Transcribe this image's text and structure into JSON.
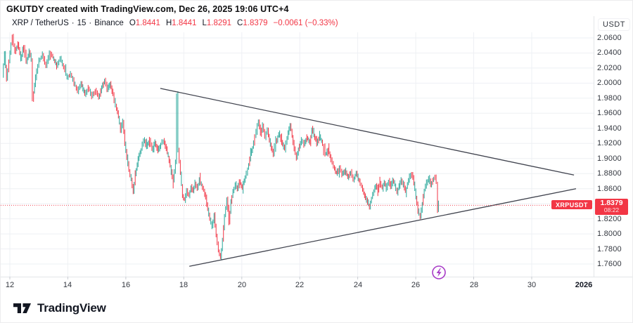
{
  "header": {
    "title": "GKUTDY created with TradingView.com, Dec 26, 2025 19:06 UTC+4"
  },
  "symbol_bar": {
    "symbol": "XRP / TetherUS",
    "sep": "·",
    "interval": "15",
    "exchange": "Binance",
    "o_label": "O",
    "o": "1.8441",
    "h_label": "H",
    "h": "1.8441",
    "l_label": "L",
    "l": "1.8291",
    "c_label": "C",
    "c": "1.8379",
    "change": "−0.0061 (−0.33%)"
  },
  "price_label": {
    "symbol": "XRPUSDT",
    "price": "1.8379",
    "countdown": "08:22"
  },
  "logo": {
    "text": "TradingView"
  },
  "colors": {
    "accent_red": "#f23645",
    "up_teal": "#26a69a",
    "trendline": "#40434e",
    "grid": "#eef0f4",
    "axis_text": "#33373f",
    "marker_purple": "#a83cc7"
  },
  "chart_data": {
    "type": "candlestick",
    "symbol": "XRPUSDT",
    "timeframe": "15",
    "exchange": "Binance",
    "last_price": 1.8379,
    "y_axis": {
      "unit": "USDT",
      "min": 1.76,
      "max": 2.06,
      "step": 0.02,
      "visible_labels": [
        "2.0600",
        "2.0400",
        "2.0200",
        "2.0000",
        "1.9800",
        "1.9600",
        "1.9400",
        "1.9200",
        "1.9000",
        "1.8800",
        "1.8600",
        "1.8200",
        "1.8000",
        "1.7800",
        "1.7600"
      ]
    },
    "x_axis": {
      "ticks": [
        12,
        14,
        16,
        18,
        20,
        22,
        24,
        26,
        28,
        30
      ],
      "year_label": "2026",
      "year_day": 31.8
    },
    "grid": true,
    "trendlines": [
      {
        "name": "upper",
        "from": [
          17.19,
          1.993
        ],
        "to": [
          31.46,
          1.878
        ]
      },
      {
        "name": "lower",
        "from": [
          18.19,
          1.757
        ],
        "to": [
          31.53,
          1.86
        ]
      }
    ],
    "price_path": [
      [
        11.76,
        2.01
      ],
      [
        11.83,
        2.04
      ],
      [
        11.9,
        2.006
      ],
      [
        11.98,
        2.03
      ],
      [
        12.1,
        2.062
      ],
      [
        12.19,
        2.04
      ],
      [
        12.29,
        2.052
      ],
      [
        12.39,
        2.032
      ],
      [
        12.49,
        2.047
      ],
      [
        12.58,
        2.028
      ],
      [
        12.68,
        2.042
      ],
      [
        12.75,
        2.032
      ],
      [
        12.8,
        1.978
      ],
      [
        12.9,
        2.008
      ],
      [
        13.02,
        2.03
      ],
      [
        13.14,
        2.038
      ],
      [
        13.26,
        2.022
      ],
      [
        13.38,
        2.04
      ],
      [
        13.5,
        2.034
      ],
      [
        13.63,
        2.022
      ],
      [
        13.75,
        2.034
      ],
      [
        13.87,
        2.02
      ],
      [
        13.99,
        2.008
      ],
      [
        14.11,
        2.012
      ],
      [
        14.23,
        2.0
      ],
      [
        14.35,
        1.99
      ],
      [
        14.47,
        2.0
      ],
      [
        14.6,
        1.985
      ],
      [
        14.72,
        1.994
      ],
      [
        14.84,
        1.982
      ],
      [
        14.96,
        1.99
      ],
      [
        15.08,
        1.98
      ],
      [
        15.18,
        1.995
      ],
      [
        15.28,
        2.004
      ],
      [
        15.37,
        1.992
      ],
      [
        15.47,
        1.999
      ],
      [
        15.57,
        1.985
      ],
      [
        15.66,
        1.97
      ],
      [
        15.76,
        1.955
      ],
      [
        15.83,
        1.938
      ],
      [
        15.91,
        1.95
      ],
      [
        15.98,
        1.92
      ],
      [
        16.05,
        1.902
      ],
      [
        16.12,
        1.884
      ],
      [
        16.2,
        1.872
      ],
      [
        16.27,
        1.856
      ],
      [
        16.34,
        1.878
      ],
      [
        16.44,
        1.9
      ],
      [
        16.54,
        1.912
      ],
      [
        16.63,
        1.925
      ],
      [
        16.73,
        1.916
      ],
      [
        16.83,
        1.926
      ],
      [
        16.92,
        1.912
      ],
      [
        17.02,
        1.922
      ],
      [
        17.12,
        1.91
      ],
      [
        17.22,
        1.92
      ],
      [
        17.31,
        1.924
      ],
      [
        17.41,
        1.912
      ],
      [
        17.51,
        1.898
      ],
      [
        17.58,
        1.882
      ],
      [
        17.65,
        1.87
      ],
      [
        17.73,
        1.895
      ],
      [
        17.77,
        1.985
      ],
      [
        17.82,
        1.912
      ],
      [
        17.9,
        1.88
      ],
      [
        17.97,
        1.85
      ],
      [
        18.04,
        1.845
      ],
      [
        18.11,
        1.858
      ],
      [
        18.19,
        1.85
      ],
      [
        18.26,
        1.862
      ],
      [
        18.33,
        1.856
      ],
      [
        18.4,
        1.868
      ],
      [
        18.48,
        1.86
      ],
      [
        18.55,
        1.872
      ],
      [
        18.62,
        1.865
      ],
      [
        18.7,
        1.858
      ],
      [
        18.77,
        1.848
      ],
      [
        18.84,
        1.832
      ],
      [
        18.91,
        1.82
      ],
      [
        18.99,
        1.81
      ],
      [
        19.06,
        1.825
      ],
      [
        19.13,
        1.798
      ],
      [
        19.21,
        1.778
      ],
      [
        19.28,
        1.768
      ],
      [
        19.35,
        1.792
      ],
      [
        19.42,
        1.825
      ],
      [
        19.5,
        1.846
      ],
      [
        19.57,
        1.815
      ],
      [
        19.64,
        1.843
      ],
      [
        19.71,
        1.856
      ],
      [
        19.79,
        1.866
      ],
      [
        19.86,
        1.858
      ],
      [
        19.93,
        1.87
      ],
      [
        20.03,
        1.862
      ],
      [
        20.13,
        1.876
      ],
      [
        20.22,
        1.886
      ],
      [
        20.32,
        1.906
      ],
      [
        20.42,
        1.92
      ],
      [
        20.51,
        1.938
      ],
      [
        20.59,
        1.95
      ],
      [
        20.66,
        1.932
      ],
      [
        20.73,
        1.944
      ],
      [
        20.81,
        1.928
      ],
      [
        20.9,
        1.938
      ],
      [
        21.0,
        1.918
      ],
      [
        21.1,
        1.905
      ],
      [
        21.19,
        1.921
      ],
      [
        21.29,
        1.933
      ],
      [
        21.39,
        1.922
      ],
      [
        21.49,
        1.912
      ],
      [
        21.58,
        1.928
      ],
      [
        21.68,
        1.945
      ],
      [
        21.75,
        1.93
      ],
      [
        21.82,
        1.912
      ],
      [
        21.9,
        1.9
      ],
      [
        21.97,
        1.912
      ],
      [
        22.07,
        1.925
      ],
      [
        22.16,
        1.918
      ],
      [
        22.26,
        1.928
      ],
      [
        22.36,
        1.92
      ],
      [
        22.43,
        1.94
      ],
      [
        22.5,
        1.93
      ],
      [
        22.6,
        1.92
      ],
      [
        22.7,
        1.93
      ],
      [
        22.8,
        1.918
      ],
      [
        22.89,
        1.905
      ],
      [
        22.99,
        1.912
      ],
      [
        23.09,
        1.898
      ],
      [
        23.18,
        1.888
      ],
      [
        23.28,
        1.88
      ],
      [
        23.38,
        1.888
      ],
      [
        23.47,
        1.878
      ],
      [
        23.57,
        1.885
      ],
      [
        23.67,
        1.875
      ],
      [
        23.77,
        1.882
      ],
      [
        23.86,
        1.872
      ],
      [
        23.96,
        1.88
      ],
      [
        24.06,
        1.87
      ],
      [
        24.15,
        1.862
      ],
      [
        24.25,
        1.85
      ],
      [
        24.35,
        1.842
      ],
      [
        24.42,
        1.836
      ],
      [
        24.49,
        1.848
      ],
      [
        24.57,
        1.858
      ],
      [
        24.64,
        1.865
      ],
      [
        24.71,
        1.858
      ],
      [
        24.78,
        1.868
      ],
      [
        24.86,
        1.86
      ],
      [
        24.93,
        1.868
      ],
      [
        25.0,
        1.86
      ],
      [
        25.08,
        1.87
      ],
      [
        25.15,
        1.862
      ],
      [
        25.22,
        1.872
      ],
      [
        25.29,
        1.864
      ],
      [
        25.37,
        1.856
      ],
      [
        25.44,
        1.864
      ],
      [
        25.51,
        1.872
      ],
      [
        25.59,
        1.864
      ],
      [
        25.66,
        1.856
      ],
      [
        25.73,
        1.866
      ],
      [
        25.8,
        1.876
      ],
      [
        25.88,
        1.88
      ],
      [
        25.95,
        1.868
      ],
      [
        26.02,
        1.848
      ],
      [
        26.09,
        1.83
      ],
      [
        26.17,
        1.823
      ],
      [
        26.24,
        1.84
      ],
      [
        26.31,
        1.858
      ],
      [
        26.39,
        1.868
      ],
      [
        26.46,
        1.875
      ],
      [
        26.53,
        1.865
      ],
      [
        26.6,
        1.872
      ],
      [
        26.68,
        1.876
      ],
      [
        26.73,
        1.868
      ],
      [
        26.77,
        1.83
      ],
      [
        26.8,
        1.838
      ]
    ],
    "colors": {
      "up": "#26a69a",
      "down": "#f23645"
    }
  }
}
